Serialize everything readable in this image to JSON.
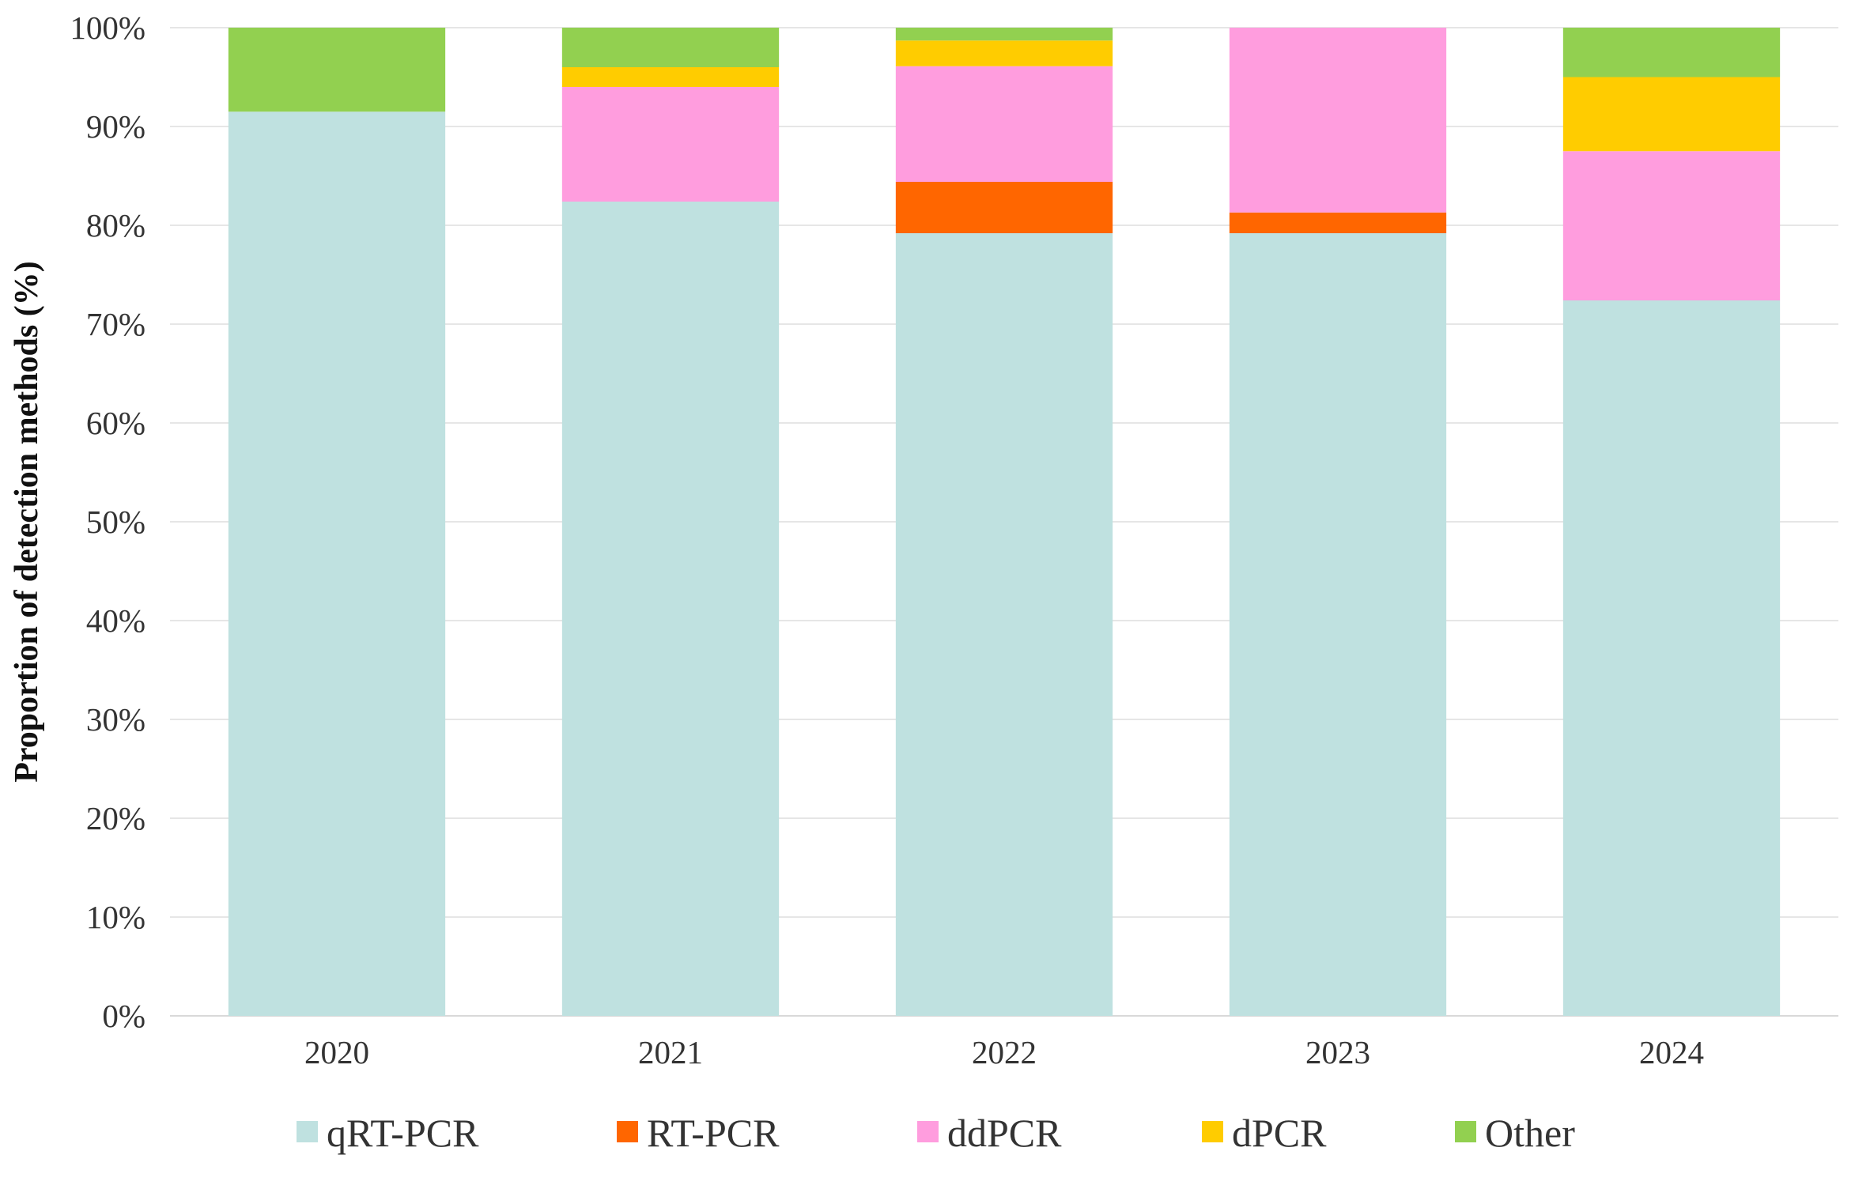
{
  "chart_data": {
    "type": "bar",
    "stacked": true,
    "title": "",
    "xlabel": "",
    "ylabel": "Proportion of detection methods (%)",
    "ylim": [
      0,
      100
    ],
    "yticks": [
      0,
      10,
      20,
      30,
      40,
      50,
      60,
      70,
      80,
      90,
      100
    ],
    "ytick_labels": [
      "0%",
      "10%",
      "20%",
      "30%",
      "40%",
      "50%",
      "60%",
      "70%",
      "80%",
      "90%",
      "100%"
    ],
    "categories": [
      "2020",
      "2021",
      "2022",
      "2023",
      "2024"
    ],
    "grid": true,
    "legend_position": "bottom",
    "series": [
      {
        "name": "qRT-PCR",
        "color": "#BFE1E0",
        "values": [
          91.5,
          82.4,
          79.2,
          79.2,
          72.4
        ]
      },
      {
        "name": "RT-PCR",
        "color": "#FF6600",
        "values": [
          0,
          0,
          5.2,
          2.1,
          0
        ]
      },
      {
        "name": "ddPCR",
        "color": "#FF9DDE",
        "values": [
          0,
          11.6,
          11.7,
          18.7,
          15.1
        ]
      },
      {
        "name": "dPCR",
        "color": "#FFCC00",
        "values": [
          0,
          2.0,
          2.6,
          0,
          7.5
        ]
      },
      {
        "name": "Other",
        "color": "#92D050",
        "values": [
          8.5,
          4.0,
          1.3,
          0,
          5.0
        ]
      }
    ]
  }
}
